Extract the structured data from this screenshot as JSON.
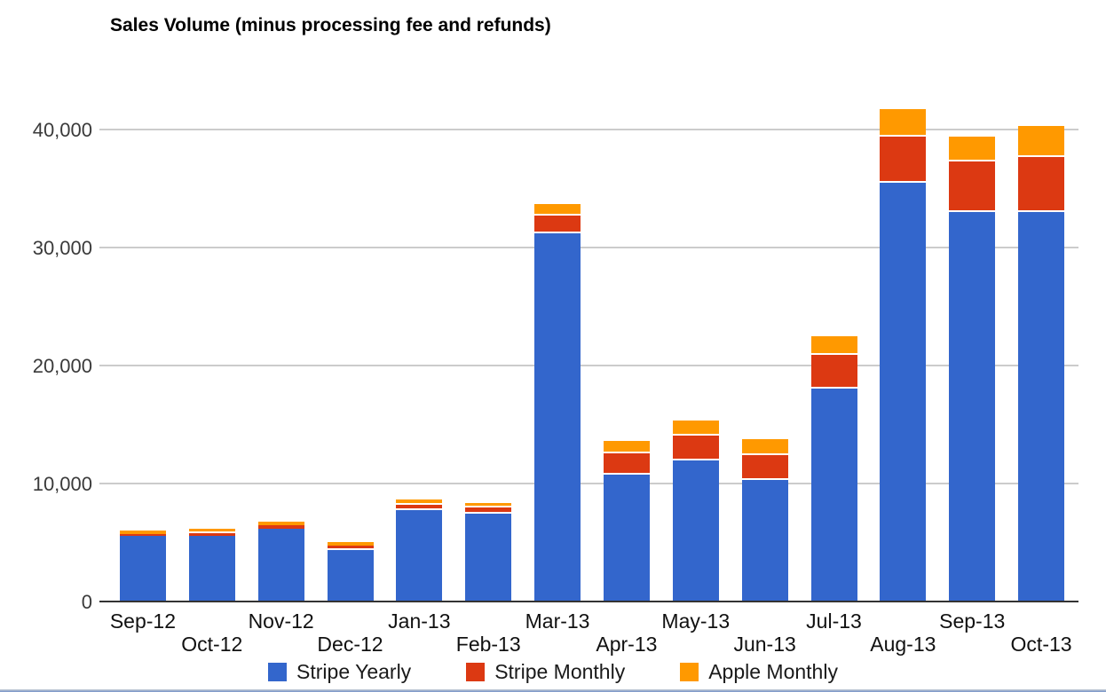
{
  "chart_data": {
    "type": "bar",
    "stacked": true,
    "title": "Sales Volume (minus processing fee and refunds)",
    "categories": [
      "Sep-12",
      "Oct-12",
      "Nov-12",
      "Dec-12",
      "Jan-13",
      "Feb-13",
      "Mar-13",
      "Apr-13",
      "May-13",
      "Jun-13",
      "Jul-13",
      "Aug-13",
      "Sep-13",
      "Oct-13"
    ],
    "series": [
      {
        "name": "Stripe Yearly",
        "color": "#3366CC",
        "values": [
          5500,
          5500,
          6100,
          4300,
          7700,
          7350,
          31100,
          10700,
          11900,
          10200,
          18000,
          35450,
          32900,
          32900
        ]
      },
      {
        "name": "Stripe Monthly",
        "color": "#DC3912",
        "values": [
          170,
          250,
          300,
          350,
          450,
          530,
          1500,
          1800,
          2050,
          2100,
          2850,
          3900,
          4350,
          4700
        ]
      },
      {
        "name": "Apple Monthly",
        "color": "#FF9900",
        "values": [
          250,
          330,
          270,
          300,
          400,
          370,
          1000,
          1000,
          1350,
          1350,
          1550,
          2300,
          2100,
          2600
        ]
      }
    ],
    "totals": [
      5920,
      6080,
      6670,
      4950,
      8550,
      8250,
      33600,
      13500,
      15300,
      13650,
      22400,
      41650,
      39350,
      40200
    ],
    "y_ticks": [
      0,
      10000,
      20000,
      30000,
      40000
    ],
    "y_tick_labels": [
      "0",
      "10,000",
      "20,000",
      "30,000",
      "40,000"
    ],
    "ylim": [
      0,
      42500
    ],
    "grid": true,
    "legend_position": "bottom",
    "xlabel": "",
    "ylabel": "",
    "colors": {
      "gridline": "#cccccc",
      "axis_line": "#333333",
      "axis_text": "#3a3a3a",
      "title_text": "#000000"
    }
  }
}
